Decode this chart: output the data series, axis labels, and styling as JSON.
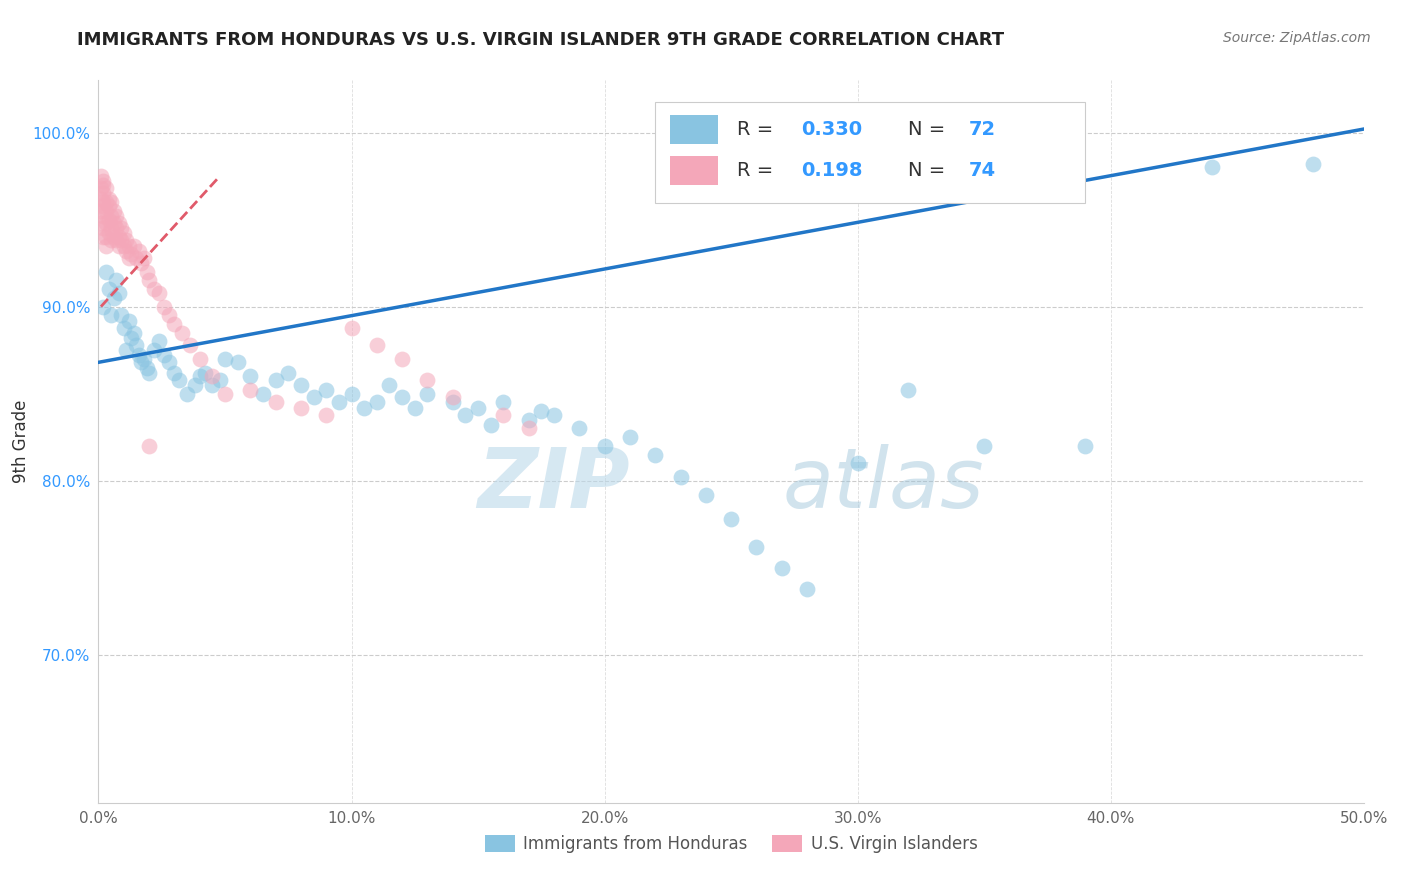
{
  "title": "IMMIGRANTS FROM HONDURAS VS U.S. VIRGIN ISLANDER 9TH GRADE CORRELATION CHART",
  "source": "Source: ZipAtlas.com",
  "xlabel_bottom": "Immigrants from Honduras",
  "xlabel_bottom2": "U.S. Virgin Islanders",
  "ylabel": "9th Grade",
  "xlim": [
    0.0,
    0.5
  ],
  "ylim": [
    0.615,
    1.03
  ],
  "xticks": [
    0.0,
    0.1,
    0.2,
    0.3,
    0.4,
    0.5
  ],
  "yticks": [
    0.7,
    0.8,
    0.9,
    1.0
  ],
  "ytick_labels": [
    "70.0%",
    "80.0%",
    "90.0%",
    "100.0%"
  ],
  "xtick_labels": [
    "0.0%",
    "10.0%",
    "20.0%",
    "30.0%",
    "40.0%",
    "50.0%"
  ],
  "blue_color": "#89c4e1",
  "pink_color": "#f4a7b9",
  "blue_line_color": "#2176c7",
  "pink_line_color": "#e05a6a",
  "blue_line_x0": 0.0,
  "blue_line_y0": 0.868,
  "blue_line_x1": 0.5,
  "blue_line_y1": 1.002,
  "pink_line_x0": 0.001,
  "pink_line_y0": 0.9,
  "pink_line_x1": 0.048,
  "pink_line_y1": 0.975,
  "blue_x": [
    0.002,
    0.003,
    0.004,
    0.005,
    0.006,
    0.007,
    0.008,
    0.009,
    0.01,
    0.011,
    0.012,
    0.013,
    0.014,
    0.015,
    0.016,
    0.017,
    0.018,
    0.019,
    0.02,
    0.022,
    0.024,
    0.026,
    0.028,
    0.03,
    0.032,
    0.035,
    0.038,
    0.04,
    0.042,
    0.045,
    0.048,
    0.05,
    0.055,
    0.06,
    0.065,
    0.07,
    0.075,
    0.08,
    0.085,
    0.09,
    0.095,
    0.1,
    0.105,
    0.11,
    0.115,
    0.12,
    0.125,
    0.13,
    0.14,
    0.145,
    0.15,
    0.155,
    0.16,
    0.17,
    0.175,
    0.18,
    0.19,
    0.2,
    0.21,
    0.22,
    0.23,
    0.24,
    0.25,
    0.26,
    0.27,
    0.28,
    0.3,
    0.32,
    0.35,
    0.39,
    0.44,
    0.48
  ],
  "blue_y": [
    0.9,
    0.92,
    0.91,
    0.895,
    0.905,
    0.915,
    0.908,
    0.895,
    0.888,
    0.875,
    0.892,
    0.882,
    0.885,
    0.878,
    0.872,
    0.868,
    0.87,
    0.865,
    0.862,
    0.875,
    0.88,
    0.872,
    0.868,
    0.862,
    0.858,
    0.85,
    0.855,
    0.86,
    0.862,
    0.855,
    0.858,
    0.87,
    0.868,
    0.86,
    0.85,
    0.858,
    0.862,
    0.855,
    0.848,
    0.852,
    0.845,
    0.85,
    0.842,
    0.845,
    0.855,
    0.848,
    0.842,
    0.85,
    0.845,
    0.838,
    0.842,
    0.832,
    0.845,
    0.835,
    0.84,
    0.838,
    0.83,
    0.82,
    0.825,
    0.815,
    0.802,
    0.792,
    0.778,
    0.762,
    0.75,
    0.738,
    0.81,
    0.852,
    0.82,
    0.82,
    0.98,
    0.982
  ],
  "pink_x": [
    0.001,
    0.001,
    0.001,
    0.001,
    0.001,
    0.002,
    0.002,
    0.002,
    0.002,
    0.002,
    0.002,
    0.002,
    0.002,
    0.003,
    0.003,
    0.003,
    0.003,
    0.003,
    0.003,
    0.004,
    0.004,
    0.004,
    0.004,
    0.005,
    0.005,
    0.005,
    0.005,
    0.006,
    0.006,
    0.006,
    0.007,
    0.007,
    0.007,
    0.008,
    0.008,
    0.008,
    0.009,
    0.009,
    0.01,
    0.01,
    0.011,
    0.011,
    0.012,
    0.012,
    0.013,
    0.014,
    0.015,
    0.016,
    0.017,
    0.018,
    0.019,
    0.02,
    0.022,
    0.024,
    0.026,
    0.028,
    0.03,
    0.033,
    0.036,
    0.04,
    0.045,
    0.05,
    0.06,
    0.07,
    0.08,
    0.09,
    0.1,
    0.11,
    0.12,
    0.13,
    0.14,
    0.16,
    0.17,
    0.02
  ],
  "pink_y": [
    0.968,
    0.962,
    0.975,
    0.955,
    0.948,
    0.972,
    0.965,
    0.958,
    0.952,
    0.945,
    0.96,
    0.97,
    0.94,
    0.968,
    0.96,
    0.955,
    0.948,
    0.94,
    0.935,
    0.962,
    0.958,
    0.95,
    0.942,
    0.96,
    0.952,
    0.945,
    0.938,
    0.955,
    0.948,
    0.94,
    0.952,
    0.945,
    0.938,
    0.948,
    0.94,
    0.935,
    0.945,
    0.938,
    0.942,
    0.935,
    0.938,
    0.932,
    0.935,
    0.928,
    0.93,
    0.935,
    0.928,
    0.932,
    0.925,
    0.928,
    0.92,
    0.915,
    0.91,
    0.908,
    0.9,
    0.895,
    0.89,
    0.885,
    0.878,
    0.87,
    0.86,
    0.85,
    0.852,
    0.845,
    0.842,
    0.838,
    0.888,
    0.878,
    0.87,
    0.858,
    0.848,
    0.838,
    0.83,
    0.82
  ]
}
